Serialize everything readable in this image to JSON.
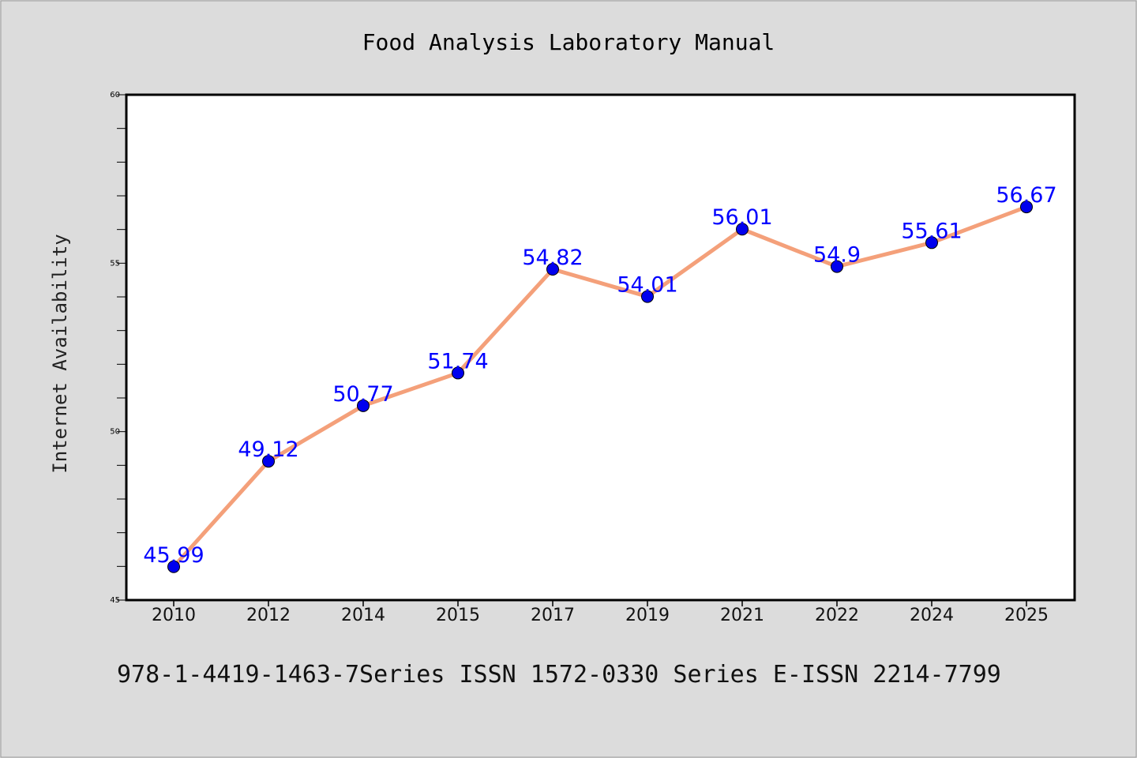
{
  "chart_data": {
    "type": "line",
    "title": "Food Analysis Laboratory Manual",
    "xlabel": "",
    "ylabel": "Internet Availability",
    "footer": "978-1-4419-1463-7Series ISSN 1572-0330 Series E-ISSN 2214-7799",
    "categories": [
      "2010",
      "2012",
      "2014",
      "2015",
      "2017",
      "2019",
      "2021",
      "2022",
      "2024",
      "2025"
    ],
    "values": [
      45.99,
      49.12,
      50.77,
      51.74,
      54.82,
      54.01,
      56.01,
      54.9,
      55.61,
      56.67
    ],
    "labels": [
      "45.99",
      "49.12",
      "50.77",
      "51.74",
      "54.82",
      "54.01",
      "56.01",
      "54.9",
      "55.61",
      "56.67"
    ],
    "ylim": [
      45,
      60
    ],
    "yticks": [
      "45",
      "50",
      "55",
      "60"
    ],
    "grid": false,
    "legend": "none",
    "colors": {
      "line": "#f4a07a",
      "marker": "#0000ee",
      "data_label": "#0000ff",
      "axis": "#000000",
      "background": "#dcdcdc",
      "plot_background": "#ffffff"
    }
  }
}
